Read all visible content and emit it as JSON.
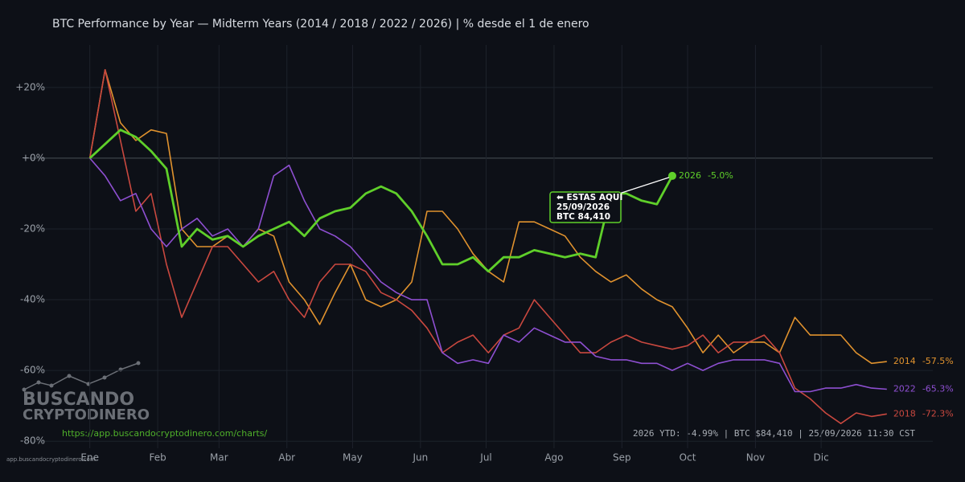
{
  "chart_data": {
    "type": "line",
    "title": "BTC Performance by Year — Midterm Years (2014 / 2018 / 2022 / 2026)  |  % desde el 1 de enero",
    "x": [
      0,
      7,
      14,
      21,
      28,
      35,
      42,
      49,
      56,
      63,
      70,
      77,
      84,
      91,
      98,
      105,
      112,
      119,
      126,
      133,
      140,
      147,
      154,
      161,
      168,
      175,
      182,
      189,
      196,
      203,
      210,
      217,
      224,
      231,
      238,
      245,
      252,
      259,
      266,
      273,
      280,
      287,
      294,
      301,
      308,
      315,
      322,
      329,
      336,
      343,
      350,
      357,
      364
    ],
    "xlim": [
      -30,
      385
    ],
    "xticks": [
      {
        "value": 0,
        "label": "Ene"
      },
      {
        "value": 31,
        "label": "Feb"
      },
      {
        "value": 59,
        "label": "Mar"
      },
      {
        "value": 90,
        "label": "Abr"
      },
      {
        "value": 120,
        "label": "May"
      },
      {
        "value": 151,
        "label": "Jun"
      },
      {
        "value": 181,
        "label": "Jul"
      },
      {
        "value": 212,
        "label": "Ago"
      },
      {
        "value": 243,
        "label": "Sep"
      },
      {
        "value": 273,
        "label": "Oct"
      },
      {
        "value": 304,
        "label": "Nov"
      },
      {
        "value": 334,
        "label": "Dic"
      }
    ],
    "ylim": [
      -82,
      32
    ],
    "yticks": [
      {
        "value": 20,
        "label": "+20%"
      },
      {
        "value": 0,
        "label": "+0%"
      },
      {
        "value": -20,
        "label": "-20%"
      },
      {
        "value": -40,
        "label": "-40%"
      },
      {
        "value": -60,
        "label": "-60%"
      },
      {
        "value": -80,
        "label": "-80%"
      }
    ],
    "grid": true,
    "series": [
      {
        "name": "2014",
        "color": "#e0922e",
        "end_label": "-57.5%",
        "values": [
          0,
          25,
          10,
          5,
          8,
          7,
          -20,
          -25,
          -25,
          -22,
          -25,
          -20,
          -22,
          -35,
          -40,
          -47,
          -38,
          -30,
          -40,
          -42,
          -40,
          -35,
          -15,
          -15,
          -20,
          -27,
          -32,
          -35,
          -18,
          -18,
          -20,
          -22,
          -28,
          -32,
          -35,
          -33,
          -37,
          -40,
          -42,
          -48,
          -55,
          -50,
          -55,
          -52,
          -52,
          -55,
          -45,
          -50,
          -50,
          -50,
          -55,
          -58,
          -57.5
        ]
      },
      {
        "name": "2018",
        "color": "#c9483f",
        "end_label": "-72.3%",
        "values": [
          0,
          25,
          5,
          -15,
          -10,
          -30,
          -45,
          -35,
          -25,
          -25,
          -30,
          -35,
          -32,
          -40,
          -45,
          -35,
          -30,
          -30,
          -32,
          -38,
          -40,
          -43,
          -48,
          -55,
          -52,
          -50,
          -55,
          -50,
          -48,
          -40,
          -45,
          -50,
          -55,
          -55,
          -52,
          -50,
          -52,
          -53,
          -54,
          -53,
          -50,
          -55,
          -52,
          -52,
          -50,
          -55,
          -65,
          -68,
          -72,
          -75,
          -72,
          -73,
          -72.3
        ]
      },
      {
        "name": "2022",
        "color": "#8e4fd1",
        "end_label": "-65.3%",
        "values": [
          0,
          -5,
          -12,
          -10,
          -20,
          -25,
          -20,
          -17,
          -22,
          -20,
          -25,
          -20,
          -5,
          -2,
          -12,
          -20,
          -22,
          -25,
          -30,
          -35,
          -38,
          -40,
          -40,
          -55,
          -58,
          -57,
          -58,
          -50,
          -52,
          -48,
          -50,
          -52,
          -52,
          -56,
          -57,
          -57,
          -58,
          -58,
          -60,
          -58,
          -60,
          -58,
          -57,
          -57,
          -57,
          -58,
          -66,
          -66,
          -65,
          -65,
          -64,
          -65,
          -65.3
        ]
      },
      {
        "name": "2026",
        "color": "#5fcf2a",
        "end_label": "-5.0%",
        "values": [
          0,
          4,
          8,
          6,
          2,
          -3,
          -25,
          -20,
          -23,
          -22,
          -25,
          -22,
          -20,
          -18,
          -22,
          -17,
          -15,
          -14,
          -10,
          -8,
          -10,
          -15,
          -22,
          -30,
          -30,
          -28,
          -32,
          -28,
          -28,
          -26,
          -27,
          -28,
          -27,
          -28,
          -10,
          -10,
          -12,
          -13,
          -5,
          null,
          null,
          null,
          null,
          null,
          null,
          null,
          null,
          null,
          null,
          null,
          null,
          null,
          null
        ]
      }
    ],
    "annotation": [
      "⬅ ESTAS AQUI",
      "25/09/2026",
      "BTC 84,410"
    ],
    "footer": "2026 YTD: -4.99%  |  BTC $84,410  |  25/09/2026 11:30 CST",
    "url": "https://app.buscandocryptodinero.com/charts/",
    "logo": [
      "BUSCANDO",
      "CRYPTODINERO"
    ],
    "watermark": "app.buscandocryptodinero.com"
  }
}
